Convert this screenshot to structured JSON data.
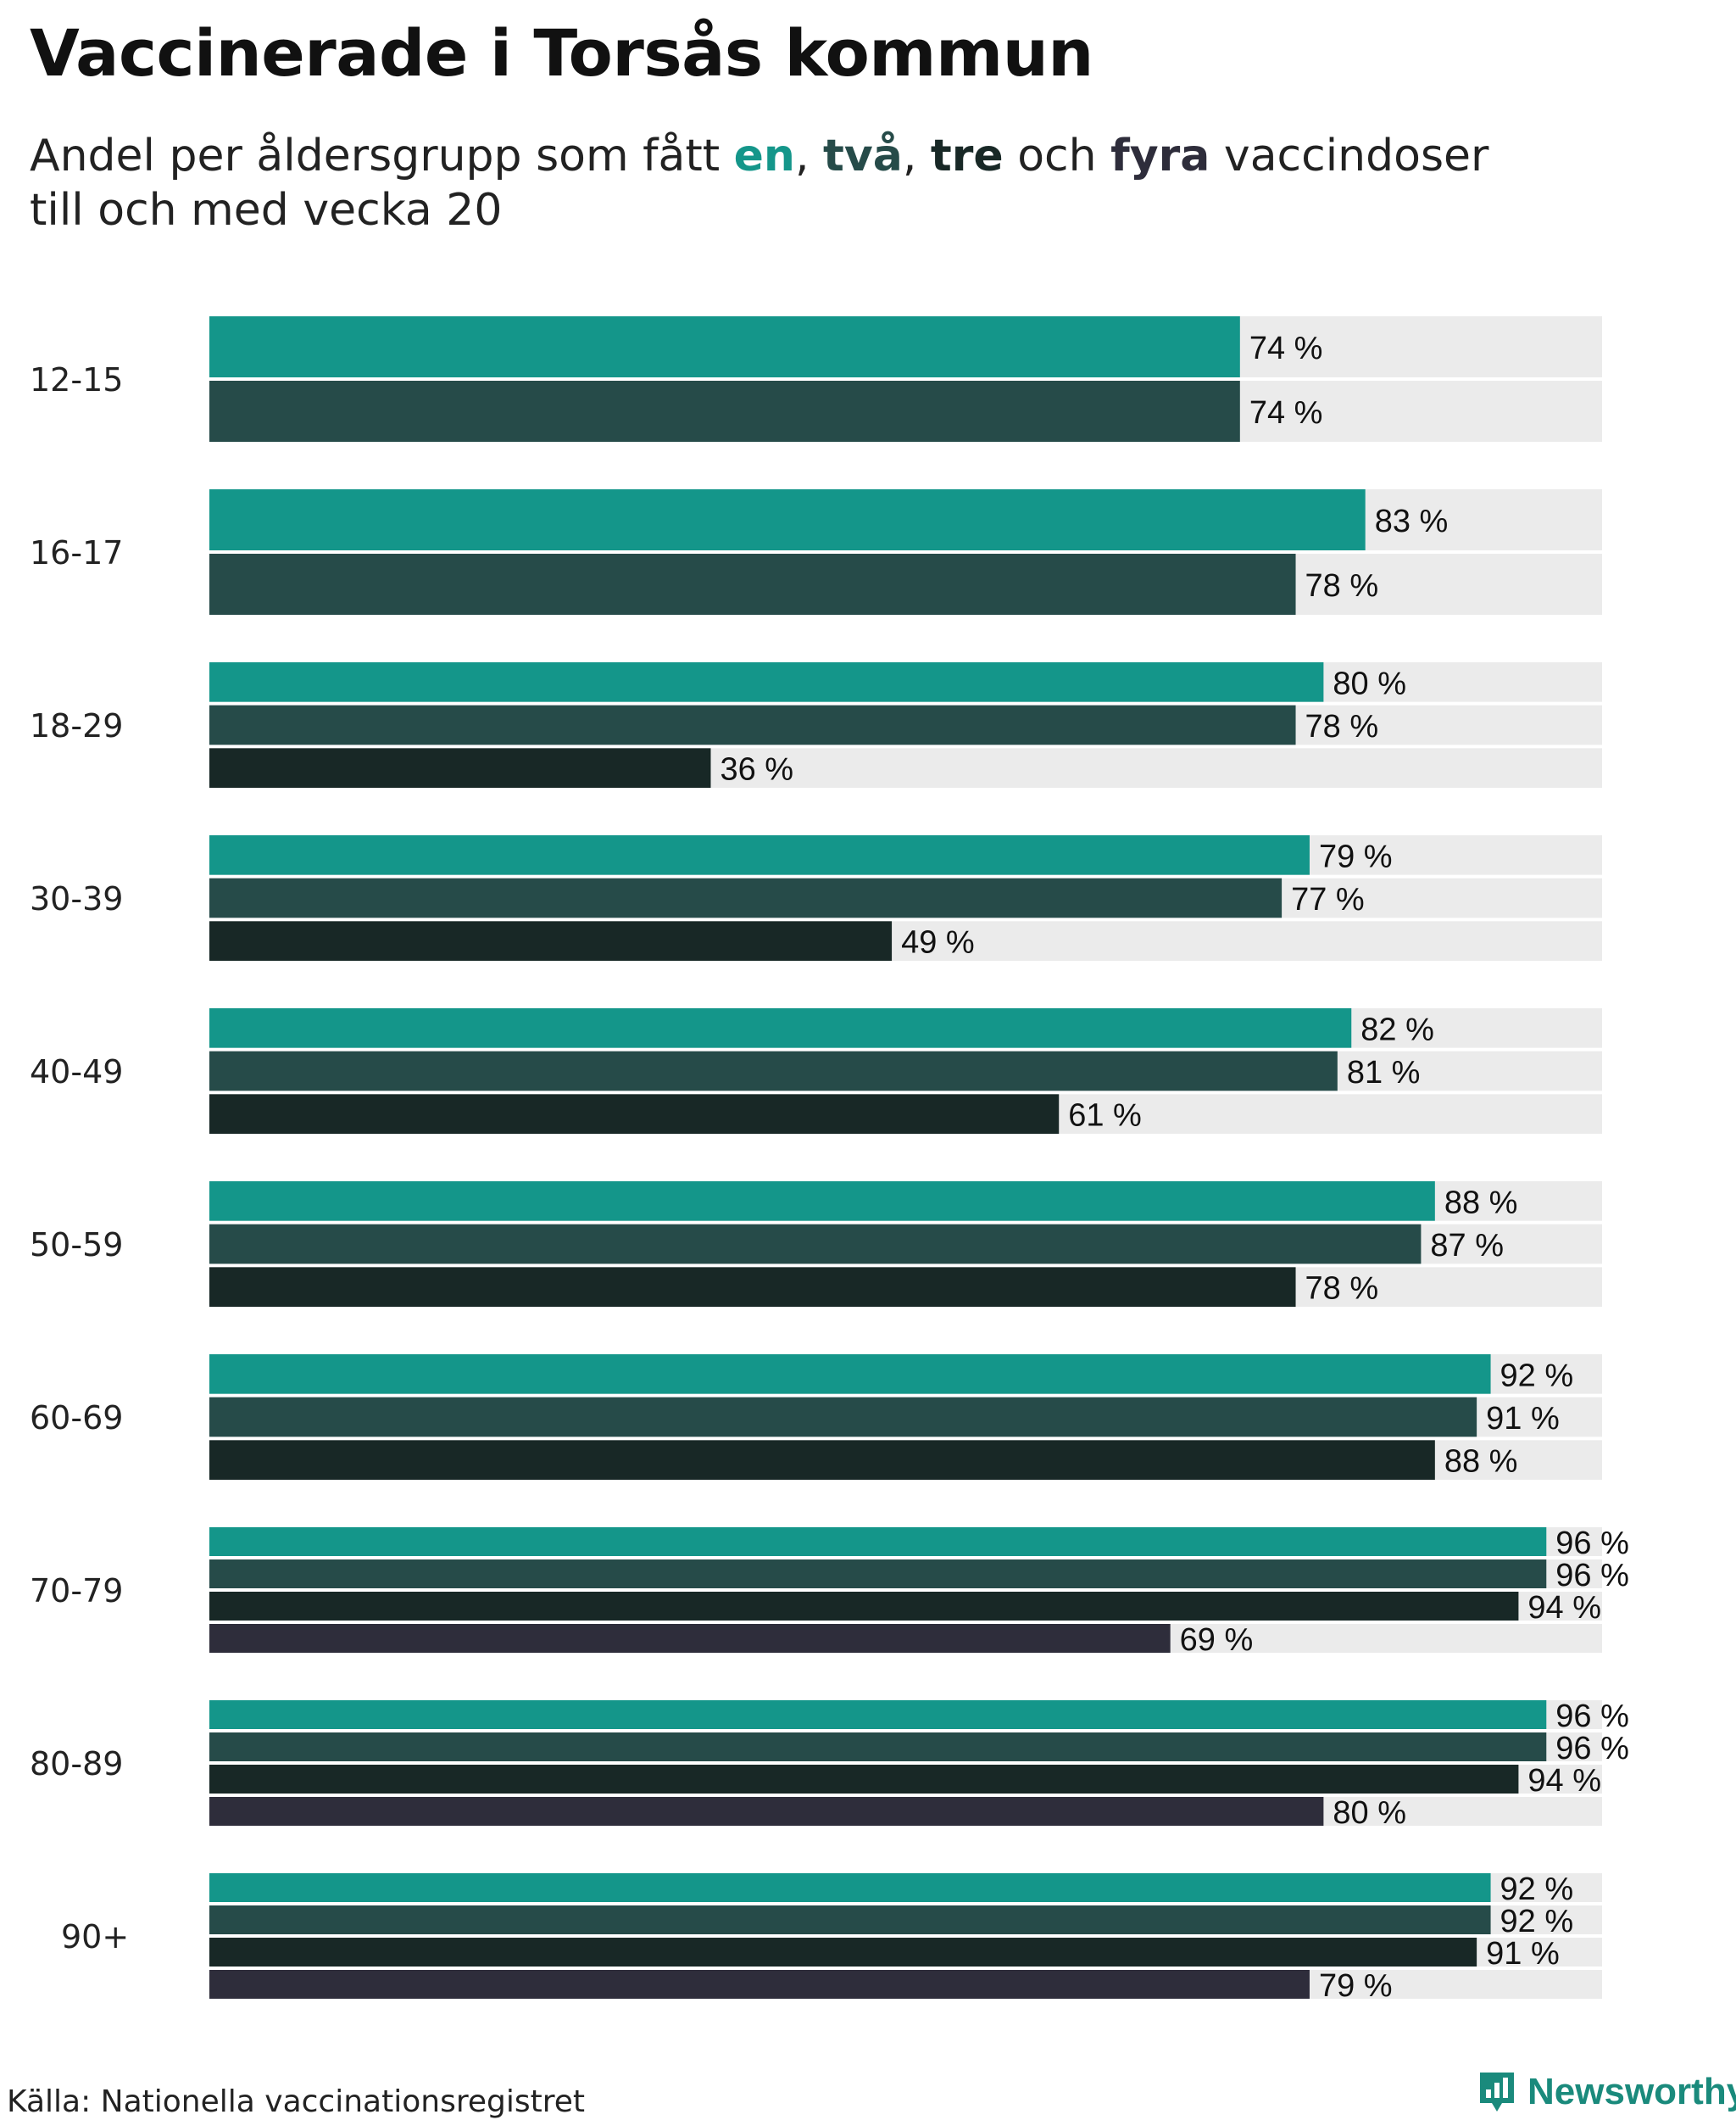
{
  "title": "Vaccinerade i Torsås kommun",
  "subtitle": {
    "prefix": "Andel per åldersgrupp som fått ",
    "kw1": "en",
    "sep1": ", ",
    "kw2": "två",
    "sep2": ", ",
    "kw3": "tre",
    "sep3": " och ",
    "kw4": "fyra",
    "suffix": " vaccindoser",
    "line2": "till och med vecka 20"
  },
  "source": "Källa: Nationella vaccinationsregistret",
  "brand": "Newsworthy",
  "colors": {
    "dose1": "#14968a",
    "dose2": "#264b49",
    "dose3": "#182826",
    "dose4": "#2e2d3b",
    "track": "#ebebeb",
    "brand": "#1a8a7c"
  },
  "chart_data": {
    "type": "bar",
    "orientation": "horizontal",
    "title": "Vaccinerade i Torsås kommun",
    "subtitle": "Andel per åldersgrupp som fått en, två, tre och fyra vaccindoser till och med vecka 20",
    "xlim": [
      0,
      100
    ],
    "unit": "%",
    "series_names": [
      "en",
      "två",
      "tre",
      "fyra"
    ],
    "groups": [
      {
        "label": "12-15",
        "values": [
          74,
          74
        ]
      },
      {
        "label": "16-17",
        "values": [
          83,
          78
        ]
      },
      {
        "label": "18-29",
        "values": [
          80,
          78,
          36
        ]
      },
      {
        "label": "30-39",
        "values": [
          79,
          77,
          49
        ]
      },
      {
        "label": "40-49",
        "values": [
          82,
          81,
          61
        ]
      },
      {
        "label": "50-59",
        "values": [
          88,
          87,
          78
        ]
      },
      {
        "label": "60-69",
        "values": [
          92,
          91,
          88
        ]
      },
      {
        "label": "70-79",
        "values": [
          96,
          96,
          94,
          69
        ]
      },
      {
        "label": "80-89",
        "values": [
          96,
          96,
          94,
          80
        ]
      },
      {
        "label": "90+",
        "values": [
          92,
          92,
          91,
          79
        ]
      }
    ]
  }
}
